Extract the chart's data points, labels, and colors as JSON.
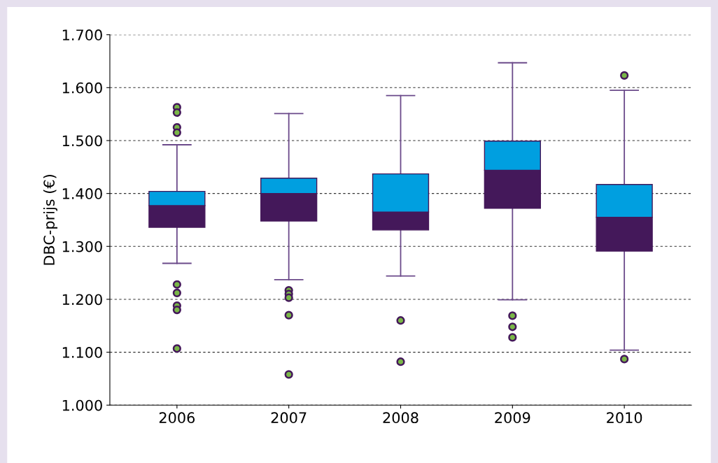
{
  "chart_data": {
    "type": "box",
    "ylabel": "DBC-prijs (€)",
    "categories": [
      "2006",
      "2007",
      "2008",
      "2009",
      "2010"
    ],
    "colors": [
      "#44185a",
      "#44185a",
      "#44185a",
      "#44185a",
      "#44185a"
    ],
    "color": "#009fe0",
    "boxes": [
      {
        "low": 1268,
        "q1": 1336,
        "median": 1377,
        "q3": 1404,
        "high": 1492,
        "outliers": [
          1563,
          1553,
          1525,
          1515,
          1228,
          1212,
          1188,
          1180,
          1107
        ]
      },
      {
        "low": 1237,
        "q1": 1348,
        "median": 1400,
        "q3": 1429,
        "high": 1551,
        "outliers": [
          1217,
          1210,
          1203,
          1170,
          1058
        ]
      },
      {
        "low": 1244,
        "q1": 1331,
        "median": 1365,
        "q3": 1437,
        "high": 1585,
        "outliers": [
          1160,
          1082
        ]
      },
      {
        "low": 1199,
        "q1": 1372,
        "median": 1444,
        "q3": 1499,
        "high": 1647,
        "outliers": [
          1169,
          1148,
          1128
        ]
      },
      {
        "low": 1104,
        "q1": 1291,
        "median": 1355,
        "q3": 1417,
        "high": 1595,
        "outliers": [
          1623,
          1087
        ]
      }
    ],
    "ylim": [
      1000,
      1700
    ],
    "yticks": [
      {
        "value": 1000,
        "label": "1.000"
      },
      {
        "value": 1100,
        "label": "1.100"
      },
      {
        "value": 1200,
        "label": "1.200"
      },
      {
        "value": 1300,
        "label": "1.300"
      },
      {
        "value": 1400,
        "label": "1.400"
      },
      {
        "value": 1500,
        "label": "1.500"
      },
      {
        "value": 1600,
        "label": "1.600"
      },
      {
        "value": 1700,
        "label": "1.700"
      }
    ],
    "grid": "y"
  }
}
